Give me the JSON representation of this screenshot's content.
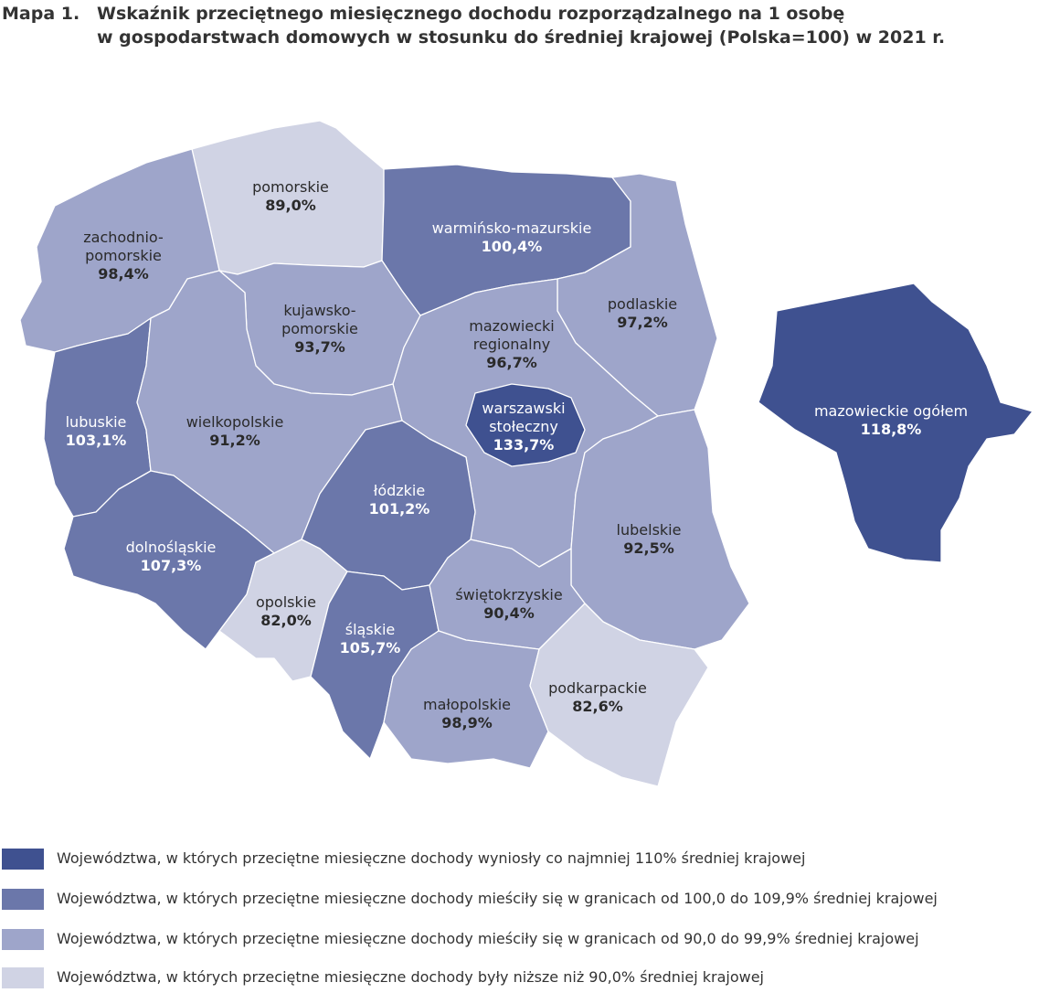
{
  "title": {
    "number": "Mapa 1.",
    "line1": "Wskaźnik przeciętnego miesięcznego dochodu rozporządzalnego na 1 osobę",
    "line2": "w gospodarstwach domowych w stosunku do średniej krajowej (Polska=100) w 2021 r."
  },
  "colors": {
    "cat1": "#3f5190",
    "cat2": "#6b77aa",
    "cat3": "#9ea5ca",
    "cat4": "#d0d3e4",
    "light_text": "#ffffff",
    "dark_text": "#2a2a2a"
  },
  "regions": [
    {
      "id": "pomorskie",
      "name_lines": [
        "pomorskie"
      ],
      "value": "89,0%",
      "category": "cat4"
    },
    {
      "id": "zachodniopomorskie",
      "name_lines": [
        "zachodnio-",
        "pomorskie"
      ],
      "value": "98,4%",
      "category": "cat3"
    },
    {
      "id": "warminsko-mazurskie",
      "name_lines": [
        "warmińsko-mazurskie"
      ],
      "value": "100,4%",
      "category": "cat2"
    },
    {
      "id": "podlaskie",
      "name_lines": [
        "podlaskie"
      ],
      "value": "97,2%",
      "category": "cat3"
    },
    {
      "id": "kujawsko-pomorskie",
      "name_lines": [
        "kujawsko-",
        "pomorskie"
      ],
      "value": "93,7%",
      "category": "cat3"
    },
    {
      "id": "mazowiecki-regionalny",
      "name_lines": [
        "mazowiecki",
        "regionalny"
      ],
      "value": "96,7%",
      "category": "cat3"
    },
    {
      "id": "lubuskie",
      "name_lines": [
        "lubuskie"
      ],
      "value": "103,1%",
      "category": "cat2"
    },
    {
      "id": "wielkopolskie",
      "name_lines": [
        "wielkopolskie"
      ],
      "value": "91,2%",
      "category": "cat3"
    },
    {
      "id": "warszawski-stoleczny",
      "name_lines": [
        "warszawski",
        "stołeczny"
      ],
      "value": "133,7%",
      "category": "cat1"
    },
    {
      "id": "lodzkie",
      "name_lines": [
        "łódzkie"
      ],
      "value": "101,2%",
      "category": "cat2"
    },
    {
      "id": "lubelskie",
      "name_lines": [
        "lubelskie"
      ],
      "value": "92,5%",
      "category": "cat3"
    },
    {
      "id": "dolnoslaskie",
      "name_lines": [
        "dolnośląskie"
      ],
      "value": "107,3%",
      "category": "cat2"
    },
    {
      "id": "opolskie",
      "name_lines": [
        "opolskie"
      ],
      "value": "82,0%",
      "category": "cat4"
    },
    {
      "id": "slaskie",
      "name_lines": [
        "śląskie"
      ],
      "value": "105,7%",
      "category": "cat2"
    },
    {
      "id": "swietokrzyskie",
      "name_lines": [
        "świętokrzyskie"
      ],
      "value": "90,4%",
      "category": "cat3"
    },
    {
      "id": "malopolskie",
      "name_lines": [
        "małopolskie"
      ],
      "value": "98,9%",
      "category": "cat3"
    },
    {
      "id": "podkarpackie",
      "name_lines": [
        "podkarpackie"
      ],
      "value": "82,6%",
      "category": "cat4"
    },
    {
      "id": "mazowieckie-ogolem",
      "name_lines": [
        "mazowieckie ogółem"
      ],
      "value": "118,8%",
      "category": "cat1"
    }
  ],
  "legend": [
    {
      "category": "cat1",
      "text": "Województwa, w których przeciętne miesięczne dochody wyniosły co najmniej 110% średniej krajowej"
    },
    {
      "category": "cat2",
      "text": "Województwa, w których przeciętne miesięczne dochody mieściły się w granicach od 100,0 do 109,9% średniej krajowej"
    },
    {
      "category": "cat3",
      "text": "Województwa, w których przeciętne miesięczne dochody mieściły się w granicach od 90,0 do 99,9% średniej krajowej"
    },
    {
      "category": "cat4",
      "text": "Województwa, w których przeciętne miesięczne dochody były niższe niż 90,0% średniej krajowej"
    }
  ]
}
